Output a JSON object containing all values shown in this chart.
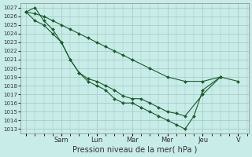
{
  "xlabel": "Pression niveau de la mer( hPa )",
  "bg_color": "#c8ece8",
  "grid_color": "#a0c8c0",
  "line_color": "#1a5c2a",
  "yticks": [
    1013,
    1014,
    1015,
    1016,
    1017,
    1018,
    1019,
    1020,
    1021,
    1022,
    1023,
    1024,
    1025,
    1026,
    1027
  ],
  "x_tick_labels": [
    "",
    "Sam",
    "Lun",
    "Mar",
    "Mer",
    "Jeu",
    "V"
  ],
  "x_tick_positions": [
    0,
    1,
    2,
    3,
    4,
    5,
    6
  ],
  "series": [
    {
      "x": [
        0.0,
        0.25,
        0.5,
        0.75,
        1.0,
        1.25,
        1.5,
        1.75,
        2.0,
        2.25,
        2.5,
        2.75,
        3.0,
        3.5,
        4.0,
        4.5,
        5.0,
        5.5,
        6.0
      ],
      "y": [
        1026.5,
        1026.3,
        1026.0,
        1025.5,
        1025.0,
        1024.5,
        1024.0,
        1023.5,
        1023.0,
        1022.5,
        1022.0,
        1021.5,
        1021.0,
        1020.0,
        1019.0,
        1018.5,
        1018.5,
        1019.0,
        1018.5
      ]
    },
    {
      "x": [
        0.0,
        0.25,
        0.5,
        0.75,
        1.0,
        1.25,
        1.5,
        1.75,
        2.0,
        2.25,
        2.5,
        2.75,
        3.0,
        3.25,
        3.5,
        3.75,
        4.0,
        4.25,
        4.5,
        5.0,
        5.5
      ],
      "y": [
        1026.5,
        1025.5,
        1025.0,
        1024.0,
        1023.0,
        1021.0,
        1019.5,
        1018.8,
        1018.5,
        1018.0,
        1017.5,
        1016.8,
        1016.5,
        1016.5,
        1016.0,
        1015.5,
        1015.0,
        1014.8,
        1014.5,
        1017.0,
        1019.0
      ]
    },
    {
      "x": [
        0.0,
        0.25,
        0.5,
        0.75,
        1.0,
        1.25,
        1.5,
        1.75,
        2.0,
        2.25,
        2.5,
        2.75,
        3.0,
        3.25,
        3.5,
        3.75,
        4.0,
        4.25,
        4.5,
        4.75,
        5.0,
        5.5
      ],
      "y": [
        1026.5,
        1027.0,
        1025.5,
        1024.5,
        1023.0,
        1021.0,
        1019.5,
        1018.5,
        1018.0,
        1017.5,
        1016.5,
        1016.0,
        1016.0,
        1015.5,
        1015.0,
        1014.5,
        1014.0,
        1013.5,
        1013.0,
        1014.5,
        1017.5,
        1019.0
      ]
    }
  ]
}
